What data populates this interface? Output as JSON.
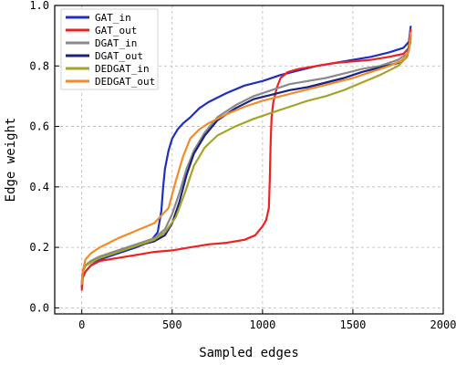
{
  "chart_data": {
    "type": "line",
    "xlabel": "Sampled edges",
    "ylabel": "Edge weight",
    "xlim": [
      -150,
      2000
    ],
    "ylim": [
      -0.02,
      1.0
    ],
    "xticks": [
      0,
      500,
      1000,
      1500,
      2000
    ],
    "yticks": [
      0.0,
      0.2,
      0.4,
      0.6,
      0.8,
      1.0
    ],
    "xtick_labels": [
      "0",
      "500",
      "1000",
      "1500",
      "2000"
    ],
    "ytick_labels": [
      "0.0",
      "0.2",
      "0.4",
      "0.6",
      "0.8",
      "1.0"
    ],
    "grid": true,
    "legend_position": "top-left",
    "series": [
      {
        "name": "GAT_in",
        "color": "#1f2fbf",
        "x": [
          0,
          5,
          20,
          50,
          100,
          200,
          300,
          380,
          420,
          440,
          450,
          460,
          480,
          500,
          530,
          560,
          600,
          650,
          700,
          800,
          900,
          1000,
          1100,
          1200,
          1300,
          1400,
          1500,
          1600,
          1700,
          1780,
          1810,
          1820
        ],
        "y": [
          0.07,
          0.1,
          0.12,
          0.14,
          0.16,
          0.18,
          0.2,
          0.22,
          0.25,
          0.32,
          0.4,
          0.46,
          0.52,
          0.56,
          0.59,
          0.61,
          0.63,
          0.66,
          0.68,
          0.71,
          0.735,
          0.75,
          0.77,
          0.785,
          0.8,
          0.81,
          0.82,
          0.83,
          0.845,
          0.86,
          0.88,
          0.93
        ]
      },
      {
        "name": "GAT_out",
        "color": "#ee2222",
        "x": [
          0,
          5,
          20,
          50,
          100,
          200,
          300,
          400,
          500,
          600,
          700,
          800,
          900,
          960,
          1000,
          1020,
          1035,
          1040,
          1045,
          1050,
          1060,
          1080,
          1100,
          1140,
          1200,
          1300,
          1400,
          1500,
          1600,
          1700,
          1780,
          1810,
          1820
        ],
        "y": [
          0.06,
          0.1,
          0.12,
          0.14,
          0.155,
          0.165,
          0.175,
          0.185,
          0.19,
          0.2,
          0.21,
          0.215,
          0.225,
          0.24,
          0.27,
          0.29,
          0.33,
          0.42,
          0.55,
          0.63,
          0.68,
          0.73,
          0.76,
          0.78,
          0.79,
          0.8,
          0.81,
          0.815,
          0.82,
          0.83,
          0.84,
          0.86,
          0.92
        ]
      },
      {
        "name": "DGAT_in",
        "color": "#8a8a8a",
        "x": [
          0,
          5,
          20,
          50,
          100,
          200,
          300,
          400,
          460,
          500,
          540,
          580,
          620,
          680,
          750,
          850,
          950,
          1050,
          1150,
          1250,
          1350,
          1450,
          1550,
          1650,
          1750,
          1800,
          1820
        ],
        "y": [
          0.08,
          0.12,
          0.14,
          0.155,
          0.17,
          0.19,
          0.21,
          0.23,
          0.26,
          0.31,
          0.38,
          0.46,
          0.52,
          0.58,
          0.63,
          0.67,
          0.7,
          0.72,
          0.74,
          0.75,
          0.76,
          0.775,
          0.79,
          0.8,
          0.82,
          0.84,
          0.89
        ]
      },
      {
        "name": "DGAT_out",
        "color": "#1a237e",
        "x": [
          0,
          5,
          20,
          50,
          100,
          200,
          300,
          400,
          460,
          500,
          540,
          580,
          620,
          680,
          750,
          850,
          950,
          1050,
          1150,
          1250,
          1350,
          1450,
          1550,
          1650,
          1750,
          1800,
          1820
        ],
        "y": [
          0.08,
          0.12,
          0.14,
          0.15,
          0.165,
          0.185,
          0.205,
          0.22,
          0.24,
          0.28,
          0.35,
          0.44,
          0.51,
          0.57,
          0.62,
          0.66,
          0.69,
          0.705,
          0.72,
          0.73,
          0.745,
          0.76,
          0.78,
          0.795,
          0.81,
          0.83,
          0.9
        ]
      },
      {
        "name": "DEDGAT_in",
        "color": "#a5a52a",
        "x": [
          0,
          5,
          20,
          50,
          100,
          200,
          300,
          400,
          460,
          520,
          570,
          620,
          680,
          750,
          850,
          950,
          1050,
          1150,
          1250,
          1350,
          1450,
          1550,
          1650,
          1750,
          1800,
          1820
        ],
        "y": [
          0.08,
          0.12,
          0.14,
          0.15,
          0.165,
          0.185,
          0.205,
          0.225,
          0.25,
          0.3,
          0.38,
          0.47,
          0.53,
          0.57,
          0.6,
          0.625,
          0.645,
          0.665,
          0.685,
          0.7,
          0.72,
          0.745,
          0.77,
          0.8,
          0.83,
          0.88
        ]
      },
      {
        "name": "DEDGAT_out",
        "color": "#f28c28",
        "x": [
          0,
          5,
          20,
          50,
          100,
          200,
          300,
          400,
          480,
          520,
          560,
          600,
          650,
          700,
          800,
          900,
          1000,
          1100,
          1200,
          1300,
          1400,
          1500,
          1600,
          1700,
          1780,
          1810,
          1820
        ],
        "y": [
          0.08,
          0.12,
          0.16,
          0.18,
          0.2,
          0.23,
          0.255,
          0.28,
          0.33,
          0.42,
          0.5,
          0.56,
          0.59,
          0.61,
          0.64,
          0.665,
          0.685,
          0.7,
          0.715,
          0.73,
          0.745,
          0.76,
          0.78,
          0.8,
          0.82,
          0.85,
          0.91
        ]
      }
    ]
  }
}
